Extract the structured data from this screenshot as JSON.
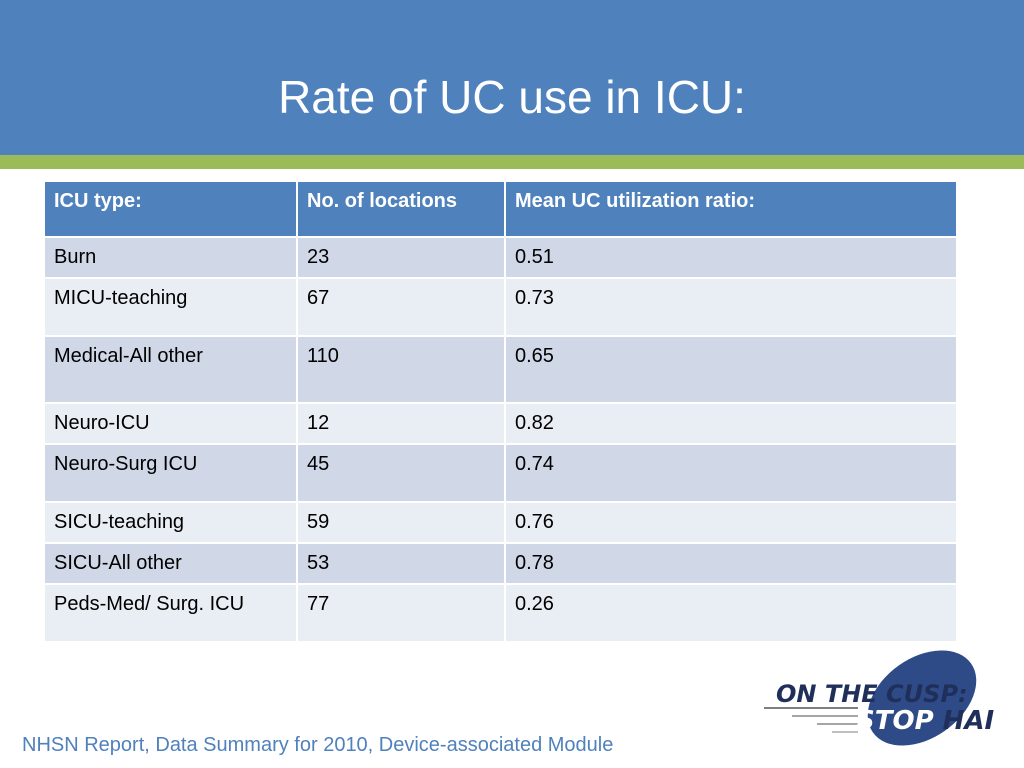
{
  "slide": {
    "title": "Rate of UC use in ICU:",
    "footer": "NHSN Report, Data Summary for 2010, Device-associated Module"
  },
  "table": {
    "headers": [
      "ICU type:",
      "No. of locations",
      "Mean UC utilization ratio:"
    ],
    "rows": [
      [
        "Burn",
        "23",
        "0.51"
      ],
      [
        "MICU-teaching",
        "67",
        "0.73"
      ],
      [
        "Medical-All other",
        "110",
        "0.65"
      ],
      [
        "Neuro-ICU",
        "12",
        "0.82"
      ],
      [
        "Neuro-Surg ICU",
        "45",
        "0.74"
      ],
      [
        "SICU-teaching",
        "59",
        "0.76"
      ],
      [
        "SICU-All other",
        "53",
        "0.78"
      ],
      [
        "Peds-Med/ Surg. ICU",
        "77",
        "0.26"
      ]
    ]
  },
  "logo": {
    "line1": "ON THE CUSP:",
    "line2_a": "STOP",
    "line2_b": " HAI"
  },
  "colors": {
    "title_band": "#4f81bd",
    "accent_rule": "#9bbb59",
    "row_odd": "#d0d8e8",
    "row_even": "#e9edf4",
    "logo_navy": "#1f2f5a"
  }
}
